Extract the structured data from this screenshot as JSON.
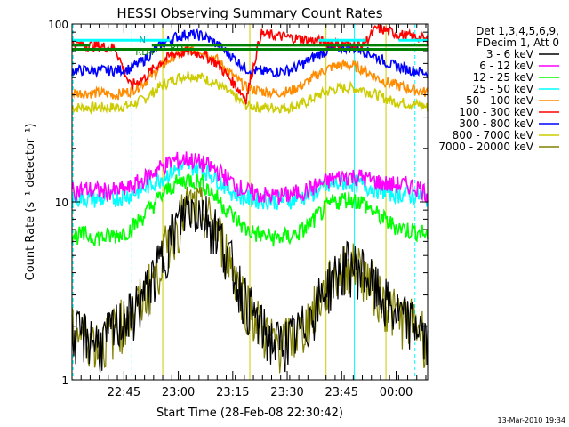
{
  "chart_data": {
    "type": "line",
    "title": "HESSI Observing Summary Count Rates",
    "xlabel": "Start Time (28-Feb-08 22:30:42)",
    "ylabel": "Count Rate (s⁻¹ detector⁻¹)",
    "yscale": "log",
    "ylim": [
      1,
      100
    ],
    "y_ticks": [
      {
        "value": 1,
        "label": "1"
      },
      {
        "value": 10,
        "label": "10"
      },
      {
        "value": 100,
        "label": "100"
      }
    ],
    "xlim": [
      0,
      98
    ],
    "x_ticks": [
      {
        "value": 14.3,
        "label": "22:45"
      },
      {
        "value": 29.3,
        "label": "23:00"
      },
      {
        "value": 44.3,
        "label": "23:15"
      },
      {
        "value": 59.3,
        "label": "23:30"
      },
      {
        "value": 74.3,
        "label": "23:45"
      },
      {
        "value": 89.3,
        "label": "00:00"
      }
    ],
    "legend": {
      "header": [
        "Det 1,3,4,5,6,9,",
        "FDecim 1, Att 0"
      ],
      "placement": "right"
    },
    "x_minutes": [
      0,
      4,
      8,
      12,
      16,
      20,
      24,
      28,
      32,
      36,
      40,
      44,
      48,
      52,
      56,
      60,
      64,
      68,
      72,
      76,
      80,
      84,
      88,
      92,
      96,
      98
    ],
    "series": [
      {
        "name": "3 - 6 keV",
        "color": "#000000",
        "values": [
          1.8,
          1.8,
          1.6,
          2.0,
          2.3,
          3.0,
          4.5,
          7.0,
          9.5,
          9.0,
          7.0,
          4.5,
          2.8,
          2.0,
          1.6,
          1.7,
          2.0,
          2.8,
          3.8,
          4.5,
          4.2,
          3.2,
          2.5,
          2.2,
          2.0,
          1.5
        ]
      },
      {
        "name": "6 - 12 keV",
        "color": "#ff00ff",
        "values": [
          11.5,
          11.8,
          11.5,
          11.5,
          12.0,
          13.5,
          15.5,
          17.0,
          17.5,
          16.5,
          15.0,
          13.0,
          11.5,
          11.0,
          10.8,
          11.0,
          11.5,
          12.5,
          13.5,
          14.0,
          13.8,
          13.0,
          12.5,
          12.5,
          12.0,
          11.0
        ]
      },
      {
        "name": "12 - 25 keV",
        "color": "#00ff00",
        "values": [
          6.5,
          6.5,
          6.3,
          6.5,
          7.0,
          8.5,
          10.5,
          12.5,
          13.5,
          12.8,
          10.5,
          8.5,
          7.0,
          6.5,
          6.3,
          6.4,
          7.0,
          8.5,
          10.0,
          10.5,
          10.0,
          8.5,
          7.5,
          7.0,
          6.8,
          6.5
        ]
      },
      {
        "name": "25 - 50 keV",
        "color": "#00ffff",
        "values": [
          10.5,
          10.5,
          10.3,
          10.5,
          11.0,
          12.0,
          13.5,
          15.0,
          16.0,
          15.5,
          13.5,
          11.5,
          10.5,
          10.3,
          10.2,
          10.3,
          10.8,
          11.5,
          12.5,
          13.0,
          12.5,
          11.8,
          11.3,
          11.0,
          10.8,
          10.5
        ]
      },
      {
        "name": "50 - 100 keV",
        "color": "#ff8c00",
        "values": [
          41,
          41,
          41,
          40,
          42,
          47,
          56,
          66,
          72,
          71,
          63,
          52,
          44,
          42,
          41,
          42,
          46,
          53,
          58,
          59,
          56,
          50,
          46,
          44,
          42,
          41
        ]
      },
      {
        "name": "100 - 300 keV",
        "color": "#ff0000",
        "values": [
          78,
          76,
          75,
          73,
          45,
          50,
          60,
          68,
          70,
          68,
          60,
          48,
          38,
          88,
          86,
          84,
          82,
          80,
          78,
          77,
          76,
          95,
          90,
          86,
          84,
          80
        ]
      },
      {
        "name": "300 - 800 keV",
        "color": "#0000ff",
        "values": [
          55,
          55,
          55,
          55,
          56,
          63,
          75,
          84,
          88,
          86,
          77,
          66,
          56,
          54,
          54,
          55,
          60,
          68,
          73,
          74,
          72,
          65,
          59,
          56,
          54,
          53
        ]
      },
      {
        "name": "800 - 7000 keV",
        "color": "#cccc00",
        "values": [
          34,
          34,
          34,
          34,
          35,
          38,
          44,
          49,
          52,
          50,
          46,
          40,
          35,
          34,
          34,
          34,
          36,
          40,
          43,
          44,
          43,
          40,
          37,
          36,
          35,
          34
        ]
      },
      {
        "name": "7000 - 20000 keV",
        "color": "#808000",
        "values": [
          1.9,
          1.8,
          1.6,
          2.0,
          2.3,
          3.0,
          4.5,
          7.0,
          9.5,
          9.0,
          7.0,
          4.5,
          2.8,
          2.0,
          1.6,
          1.7,
          2.0,
          2.8,
          3.8,
          4.5,
          4.2,
          3.2,
          2.5,
          2.2,
          2.0,
          1.6
        ]
      }
    ],
    "status_bars": [
      {
        "label": "N",
        "color": "#00ffff",
        "value": 81,
        "ranges": [
          [
            0,
            27
          ],
          [
            68,
            81
          ],
          [
            90,
            98
          ]
        ]
      },
      {
        "label": "RD",
        "color": "#008000",
        "value": 76,
        "ranges": [
          [
            0,
            5
          ],
          [
            22,
            98
          ]
        ]
      },
      {
        "label": "RD4",
        "color": "#008000",
        "value": 72,
        "ranges": [
          [
            0,
            98
          ]
        ]
      }
    ],
    "status_labels": [
      {
        "text": "N",
        "x": 18.5,
        "y": 82
      },
      {
        "text": "RD",
        "x": 27.0,
        "y": 74
      },
      {
        "text": "RD4",
        "x": 17.5,
        "y": 70
      }
    ],
    "vlines": [
      {
        "x": 0.3,
        "color": "#00ffff",
        "dashed": true
      },
      {
        "x": 16.5,
        "color": "#00ffff",
        "dashed": true
      },
      {
        "x": 25.0,
        "color": "#cccc00",
        "dashed": false
      },
      {
        "x": 49.0,
        "color": "#cccc00",
        "dashed": false
      },
      {
        "x": 70.0,
        "color": "#cccc00",
        "dashed": false
      },
      {
        "x": 77.8,
        "color": "#00ffff",
        "dashed": false
      },
      {
        "x": 86.5,
        "color": "#cccc00",
        "dashed": false
      },
      {
        "x": 94.5,
        "color": "#00ffff",
        "dashed": true
      }
    ],
    "grid": false
  },
  "footer": {
    "date_stamp": "13-Mar-2010 19:34"
  }
}
